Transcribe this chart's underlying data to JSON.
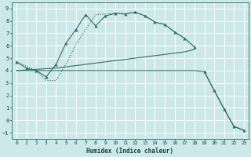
{
  "xlabel": "Humidex (Indice chaleur)",
  "bg_color": "#cce8e8",
  "grid_color": "#ffffff",
  "line_color": "#2d7068",
  "xlim": [
    -0.5,
    23.5
  ],
  "ylim": [
    -1.5,
    9.5
  ],
  "xticks": [
    0,
    1,
    2,
    3,
    4,
    5,
    6,
    7,
    8,
    9,
    10,
    11,
    12,
    13,
    14,
    15,
    16,
    17,
    18,
    19,
    20,
    21,
    22,
    23
  ],
  "yticks": [
    -1,
    0,
    1,
    2,
    3,
    4,
    5,
    6,
    7,
    8,
    9
  ],
  "line1_x": [
    0,
    1,
    2,
    3,
    4,
    5,
    6,
    7,
    8,
    9,
    10,
    11,
    12,
    13,
    14,
    15,
    16,
    17,
    18
  ],
  "line1_y": [
    4.7,
    4.2,
    4.0,
    3.5,
    4.5,
    6.2,
    7.3,
    8.5,
    7.6,
    8.4,
    8.6,
    8.55,
    8.7,
    8.4,
    7.9,
    7.7,
    7.1,
    6.6,
    5.9
  ],
  "line2_x": [
    0,
    2,
    3,
    4,
    5,
    6,
    7,
    8,
    10,
    11,
    12,
    13,
    14,
    15,
    16,
    17,
    18
  ],
  "line2_y": [
    4.7,
    4.0,
    3.2,
    3.2,
    4.5,
    6.1,
    7.3,
    8.5,
    8.6,
    8.55,
    8.7,
    8.4,
    7.9,
    7.7,
    7.1,
    6.6,
    5.9
  ],
  "line3_x": [
    0,
    1,
    2,
    3,
    4,
    5,
    6,
    7,
    8,
    9,
    10,
    11,
    12,
    13,
    14,
    15,
    16,
    17,
    18
  ],
  "line3_y": [
    4.0,
    4.05,
    4.1,
    4.15,
    4.2,
    4.3,
    4.4,
    4.5,
    4.6,
    4.7,
    4.8,
    4.9,
    5.0,
    5.1,
    5.2,
    5.3,
    5.4,
    5.5,
    5.7
  ],
  "line4_x": [
    0,
    1,
    2,
    3,
    4,
    5,
    6,
    7,
    8,
    9,
    10,
    11,
    12,
    13,
    14,
    15,
    16,
    17,
    18,
    19,
    20,
    21,
    22,
    23
  ],
  "line4_y": [
    4.0,
    4.0,
    4.0,
    4.0,
    4.0,
    4.0,
    4.0,
    4.0,
    4.0,
    4.0,
    4.0,
    4.0,
    4.0,
    4.0,
    4.0,
    4.0,
    4.0,
    4.0,
    4.0,
    3.9,
    2.4,
    0.9,
    -0.5,
    -0.8
  ]
}
